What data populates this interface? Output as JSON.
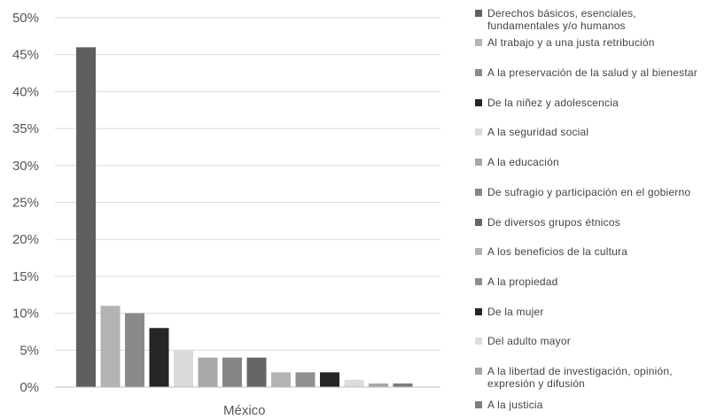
{
  "chart_data": {
    "type": "bar",
    "categories": [
      "México"
    ],
    "ylim": [
      0,
      0.5
    ],
    "yticks": [
      "0%",
      "5%",
      "10%",
      "15%",
      "20%",
      "25%",
      "30%",
      "35%",
      "40%",
      "45%",
      "50%"
    ],
    "grid": true,
    "legend_position": "right",
    "series": [
      {
        "name": "Derechos básicos, esenciales, fundamentales y/o humanos",
        "values": [
          0.46
        ],
        "color": "#5f5f5f"
      },
      {
        "name": "Al trabajo y a una justa retribución",
        "values": [
          0.11
        ],
        "color": "#b3b3b3"
      },
      {
        "name": "A la preservación de la salud y al bienestar",
        "values": [
          0.1
        ],
        "color": "#8a8a8a"
      },
      {
        "name": "De la niñez y adolescencia",
        "values": [
          0.08
        ],
        "color": "#262626"
      },
      {
        "name": "A la seguridad social",
        "values": [
          0.05
        ],
        "color": "#dadada"
      },
      {
        "name": "A la educación",
        "values": [
          0.04
        ],
        "color": "#a8a8a8"
      },
      {
        "name": "De sufragio y participación en el gobierno",
        "values": [
          0.04
        ],
        "color": "#858585"
      },
      {
        "name": "De diversos grupos étnicos",
        "values": [
          0.04
        ],
        "color": "#666666"
      },
      {
        "name": "A los beneficios de la cultura",
        "values": [
          0.02
        ],
        "color": "#b3b3b3"
      },
      {
        "name": "A la propiedad",
        "values": [
          0.02
        ],
        "color": "#8f8f8f"
      },
      {
        "name": "De la mujer",
        "values": [
          0.02
        ],
        "color": "#262626"
      },
      {
        "name": "Del adulto mayor",
        "values": [
          0.01
        ],
        "color": "#dcdcdc"
      },
      {
        "name": "A la libertad de investigación, opinión, expresión y difusión",
        "values": [
          0.005
        ],
        "color": "#a8a8a8"
      },
      {
        "name": "A la justicia",
        "values": [
          0.005
        ],
        "color": "#7d7d7d"
      }
    ]
  }
}
